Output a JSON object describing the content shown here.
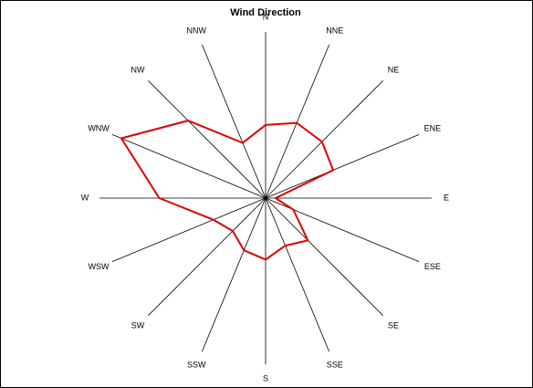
{
  "chart_data": {
    "type": "radar",
    "title": "Wind Direction",
    "categories": [
      "N",
      "NNE",
      "NE",
      "ENE",
      "E",
      "ESE",
      "SE",
      "SSE",
      "S",
      "SSW",
      "SW",
      "WSW",
      "W",
      "WNW",
      "NW",
      "NNW"
    ],
    "values": [
      44,
      49,
      48,
      44,
      6,
      18,
      36,
      31,
      37,
      34,
      28,
      34,
      64,
      94,
      66,
      36
    ],
    "color": "#e00000",
    "rlim": [
      0,
      100
    ]
  }
}
